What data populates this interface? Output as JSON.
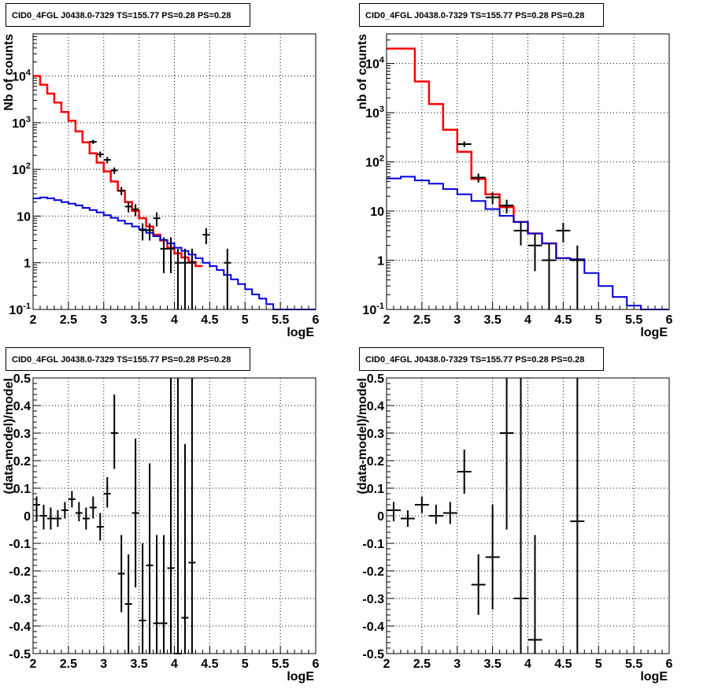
{
  "chart_data": [
    {
      "type": "line",
      "title": "CID0_4FGL J0438.0-7329 TS=155.77 PS=0.28 PS=0.28",
      "xlabel": "logE",
      "ylabel": "Nb of counts",
      "xlim": [
        2,
        6
      ],
      "ylim": [
        0.1,
        80000
      ],
      "yscale": "log",
      "grid": true,
      "xticks": [
        "2",
        "2.5",
        "3",
        "3.5",
        "4",
        "4.5",
        "5",
        "5.5",
        "6"
      ],
      "yticks": [
        {
          "value": 0.1,
          "label": "10^-1"
        },
        {
          "value": 1,
          "label": "1"
        },
        {
          "value": 10,
          "label": "10"
        },
        {
          "value": 100,
          "label": "10^2"
        },
        {
          "value": 1000,
          "label": "10^3"
        },
        {
          "value": 10000,
          "label": "10^4"
        }
      ],
      "bin_width": 0.1,
      "series": [
        {
          "color": "#ff0000",
          "kind": "histogram",
          "bins_lo": [
            2.0,
            2.1,
            2.2,
            2.3,
            2.4,
            2.5,
            2.6,
            2.7,
            2.8,
            2.9,
            3.0,
            3.1,
            3.2,
            3.3,
            3.4,
            3.5,
            3.6,
            3.7,
            3.8,
            3.9,
            4.0,
            4.1,
            4.2,
            4.3
          ],
          "values": [
            10000,
            6500,
            4200,
            2700,
            1700,
            1100,
            650,
            380,
            220,
            140,
            90,
            55,
            35,
            20,
            13,
            9,
            6,
            4,
            3,
            2.1,
            1.6,
            1.3,
            1.05,
            0.85
          ]
        },
        {
          "color": "#0000dd",
          "kind": "histogram",
          "bins_lo": [
            2.0,
            2.1,
            2.2,
            2.3,
            2.4,
            2.5,
            2.6,
            2.7,
            2.8,
            2.9,
            3.0,
            3.1,
            3.2,
            3.3,
            3.4,
            3.5,
            3.6,
            3.7,
            3.8,
            3.9,
            4.0,
            4.1,
            4.2,
            4.3,
            4.4,
            4.5,
            4.6,
            4.7,
            4.8,
            4.9,
            5.0,
            5.1,
            5.2,
            5.3,
            5.4,
            5.5,
            5.6,
            5.7,
            5.8,
            5.9
          ],
          "values": [
            24,
            25,
            24,
            22,
            20,
            18.5,
            17,
            15,
            13.5,
            12,
            10.5,
            9.2,
            8,
            6.9,
            6,
            5.2,
            4.4,
            3.7,
            3.1,
            2.6,
            2.1,
            1.8,
            1.5,
            1.25,
            1.0,
            0.85,
            0.7,
            0.55,
            0.44,
            0.35,
            0.27,
            0.21,
            0.17,
            0.13,
            0.1,
            0.1,
            0.1,
            0.1,
            0.1,
            0.1
          ]
        },
        {
          "color": "#000000",
          "kind": "errorbars",
          "xerr": 0.05,
          "x": [
            2.85,
            2.95,
            3.05,
            3.15,
            3.25,
            3.35,
            3.45,
            3.55,
            3.65,
            3.75,
            3.85,
            3.95,
            4.05,
            4.15,
            4.25,
            4.45,
            4.75
          ],
          "y": [
            390,
            210,
            160,
            95,
            35,
            16,
            14,
            5,
            5,
            9,
            2,
            2,
            1,
            1,
            1,
            4,
            1
          ],
          "ylo": [
            350,
            180,
            135,
            80,
            28,
            12,
            10,
            3,
            3,
            6,
            0.6,
            0.6,
            0.1,
            0.1,
            0.1,
            2.5,
            0.1
          ],
          "yhi": [
            430,
            240,
            185,
            110,
            42,
            20,
            18,
            7,
            7,
            12,
            3.5,
            3.5,
            2,
            2,
            2,
            5.5,
            2
          ]
        }
      ]
    },
    {
      "type": "line",
      "title": "CID0_4FGL J0438.0-7329 TS=155.77 PS=0.28 PS=0.28",
      "xlabel": "logE",
      "ylabel": "nb of counts",
      "xlim": [
        2,
        6
      ],
      "ylim": [
        0.1,
        40000
      ],
      "yscale": "log",
      "grid": true,
      "xticks": [
        "2",
        "2.5",
        "3",
        "3.5",
        "4",
        "4.5",
        "5",
        "5.5",
        "6"
      ],
      "yticks": [
        {
          "value": 0.1,
          "label": "10^-1"
        },
        {
          "value": 1,
          "label": "1"
        },
        {
          "value": 10,
          "label": "10"
        },
        {
          "value": 100,
          "label": "10^2"
        },
        {
          "value": 1000,
          "label": "10^3"
        },
        {
          "value": 10000,
          "label": "10^4"
        }
      ],
      "bin_width": 0.2,
      "series": [
        {
          "color": "#ff0000",
          "kind": "histogram",
          "bins_lo": [
            2.0,
            2.2,
            2.4,
            2.6,
            2.8,
            3.0,
            3.2,
            3.4,
            3.6,
            3.8,
            4.0,
            4.2,
            4.4
          ],
          "values": [
            20000,
            20000,
            4300,
            1500,
            450,
            160,
            45,
            22,
            12,
            6,
            3.5,
            2.2,
            1.1
          ]
        },
        {
          "color": "#0000dd",
          "kind": "histogram",
          "bins_lo": [
            2.0,
            2.2,
            2.4,
            2.6,
            2.8,
            3.0,
            3.2,
            3.4,
            3.6,
            3.8,
            4.0,
            4.2,
            4.4,
            4.6,
            4.8,
            5.0,
            5.2,
            5.4,
            5.6,
            5.8
          ],
          "values": [
            46,
            50,
            42,
            36,
            28,
            22,
            16,
            11,
            8,
            6,
            3.5,
            2.2,
            1.1,
            1.05,
            0.55,
            0.3,
            0.18,
            0.12,
            0.1,
            0.1
          ]
        },
        {
          "color": "#000000",
          "kind": "errorbars",
          "xerr": 0.1,
          "x": [
            3.1,
            3.3,
            3.5,
            3.7,
            3.9,
            4.1,
            4.3,
            4.5,
            4.7
          ],
          "y": [
            230,
            48,
            19,
            13,
            4,
            2,
            1,
            4,
            1
          ],
          "ylo": [
            200,
            38,
            14,
            9,
            2,
            0.6,
            0.1,
            2.3,
            0.1
          ],
          "yhi": [
            260,
            58,
            24,
            17,
            6,
            3.5,
            2.2,
            5.8,
            2
          ]
        }
      ]
    },
    {
      "type": "scatter",
      "title": "CID0_4FGL J0438.0-7329 TS=155.77 PS=0.28 PS=0.28",
      "xlabel": "logE",
      "ylabel": "(data-model)/model",
      "xlim": [
        2,
        6
      ],
      "ylim": [
        -0.5,
        0.5
      ],
      "grid": true,
      "xticks": [
        "2",
        "2.5",
        "3",
        "3.5",
        "4",
        "4.5",
        "5",
        "5.5",
        "6"
      ],
      "yticks": [
        "-0.5",
        "-0.4",
        "-0.3",
        "-0.2",
        "-0.1",
        "0",
        "0.1",
        "0.2",
        "0.3",
        "0.4",
        "0.5"
      ],
      "series": [
        {
          "color": "#000000",
          "kind": "errorbars",
          "xerr": 0.05,
          "x": [
            2.05,
            2.15,
            2.25,
            2.35,
            2.45,
            2.55,
            2.65,
            2.75,
            2.85,
            2.95,
            3.05,
            3.15,
            3.25,
            3.35,
            3.45,
            3.55,
            3.65,
            3.75,
            3.85,
            3.95,
            4.05,
            4.15,
            4.25
          ],
          "y": [
            0.04,
            0.0,
            -0.01,
            -0.01,
            0.02,
            0.06,
            0.01,
            -0.01,
            0.03,
            -0.04,
            0.08,
            0.3,
            -0.21,
            -0.32,
            0.01,
            -0.38,
            -0.18,
            -0.39,
            -0.39,
            -0.19,
            -0.5,
            -0.37,
            -0.17
          ],
          "ylo": [
            -0.02,
            -0.05,
            -0.05,
            -0.04,
            -0.01,
            0.03,
            -0.02,
            -0.05,
            -0.01,
            -0.09,
            0.03,
            0.17,
            -0.35,
            -0.5,
            -0.26,
            -0.5,
            -0.5,
            -0.5,
            -0.5,
            -0.5,
            -0.5,
            -0.5,
            -0.5
          ],
          "yhi": [
            0.07,
            0.04,
            0.03,
            0.02,
            0.05,
            0.09,
            0.05,
            0.03,
            0.07,
            0.01,
            0.14,
            0.44,
            -0.07,
            -0.14,
            0.28,
            -0.1,
            0.19,
            -0.07,
            -0.07,
            0.5,
            0.5,
            0.26,
            0.5
          ]
        }
      ]
    },
    {
      "type": "scatter",
      "title": "CID0_4FGL J0438.0-7329 TS=155.77 PS=0.28 PS=0.28",
      "xlabel": "logE",
      "ylabel": "(data-model)/model",
      "xlim": [
        2,
        6
      ],
      "ylim": [
        -0.5,
        0.5
      ],
      "grid": true,
      "xticks": [
        "2",
        "2.5",
        "3",
        "3.5",
        "4",
        "4.5",
        "5",
        "5.5",
        "6"
      ],
      "yticks": [
        "-0.5",
        "-0.4",
        "-0.3",
        "-0.2",
        "-0.1",
        "0",
        "0.1",
        "0.2",
        "0.3",
        "0.4",
        "0.5"
      ],
      "series": [
        {
          "color": "#000000",
          "kind": "errorbars",
          "xerr": 0.1,
          "x": [
            2.1,
            2.3,
            2.5,
            2.7,
            2.9,
            3.1,
            3.3,
            3.5,
            3.7,
            3.9,
            4.1,
            4.7
          ],
          "y": [
            0.02,
            -0.01,
            0.04,
            0.0,
            0.01,
            0.16,
            -0.25,
            -0.15,
            0.3,
            -0.3,
            -0.45,
            -0.02
          ],
          "ylo": [
            -0.02,
            -0.04,
            0.01,
            -0.03,
            -0.03,
            0.08,
            -0.36,
            -0.34,
            -0.05,
            -0.5,
            -0.5,
            -0.5
          ],
          "yhi": [
            0.05,
            0.02,
            0.07,
            0.04,
            0.05,
            0.24,
            -0.14,
            0.04,
            0.5,
            0.5,
            -0.07,
            0.5
          ]
        }
      ]
    }
  ]
}
